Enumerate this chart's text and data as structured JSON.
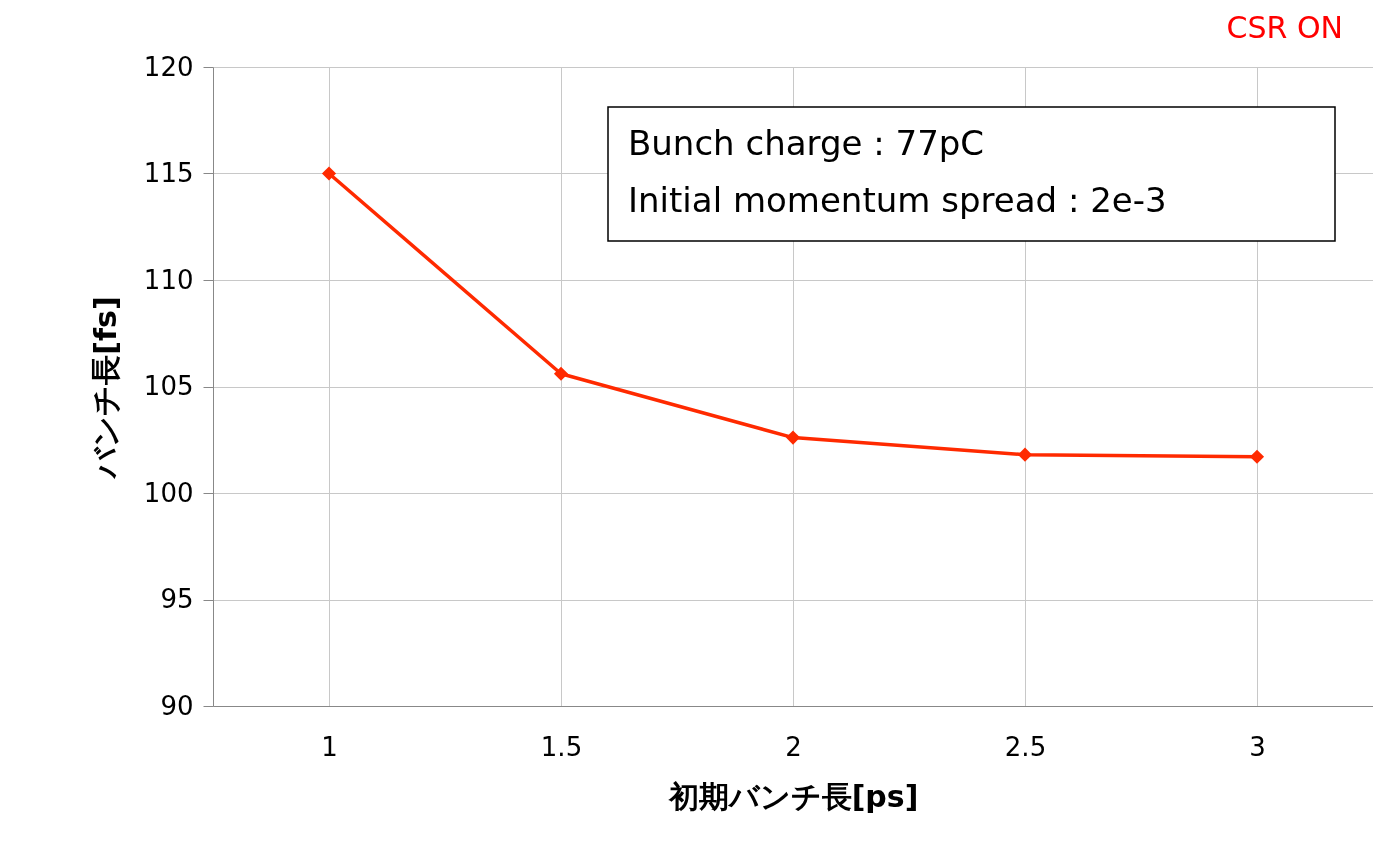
{
  "chart_data": {
    "type": "line",
    "xlabel": "初期バンチ長[ps]",
    "ylabel": "バンチ長[fs]",
    "categories": [
      "1",
      "1.5",
      "2",
      "2.5",
      "3"
    ],
    "series": [
      {
        "color": "#ff2a00",
        "values": [
          115,
          105.6,
          102.6,
          101.8,
          101.7
        ]
      }
    ],
    "ylim": [
      90,
      120
    ],
    "yticks": [
      90,
      95,
      100,
      105,
      110,
      115,
      120
    ],
    "grid": true,
    "marker": "diamond",
    "line_style": "solid",
    "annotations": [
      "CSR ON",
      "Bunch charge : 77pC",
      "Initial momentum spread : 2e-3"
    ]
  }
}
